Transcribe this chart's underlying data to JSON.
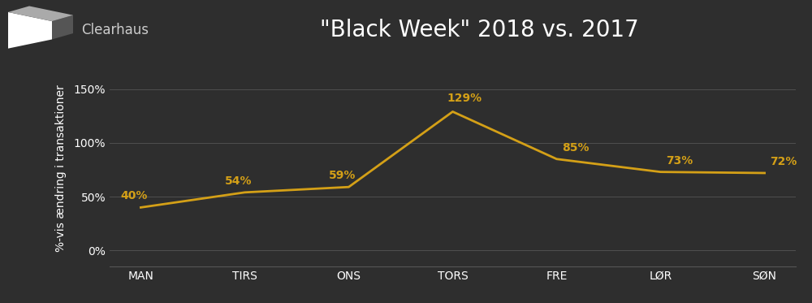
{
  "title": "\"Black Week\" 2018 vs. 2017",
  "ylabel": "%-vis ændring i transaktioner",
  "categories": [
    "MAN",
    "TIRS",
    "ONS",
    "TORS",
    "FRE",
    "LØR",
    "SØN"
  ],
  "values": [
    40,
    54,
    59,
    129,
    85,
    73,
    72
  ],
  "line_color": "#D4A017",
  "annotation_color": "#D4A017",
  "background_color": "#2e2e2e",
  "plot_bg_color": "#2e2e2e",
  "text_color": "#ffffff",
  "grid_color": "#555555",
  "yticks": [
    0,
    50,
    100,
    150
  ],
  "ylim": [
    -15,
    168
  ],
  "title_fontsize": 20,
  "label_fontsize": 10,
  "tick_fontsize": 10,
  "annotation_fontsize": 10,
  "logo_text": "Clearhaus",
  "logo_text_color": "#cccccc",
  "logo_fontsize": 12
}
